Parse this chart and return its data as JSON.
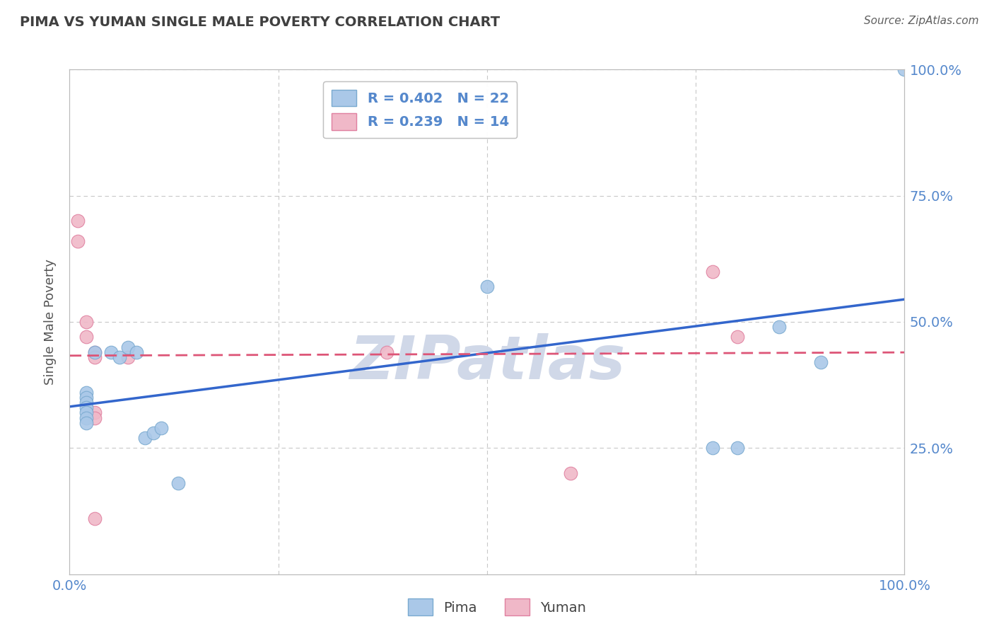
{
  "title": "PIMA VS YUMAN SINGLE MALE POVERTY CORRELATION CHART",
  "source": "Source: ZipAtlas.com",
  "ylabel": "Single Male Poverty",
  "xlim": [
    0,
    100
  ],
  "ylim": [
    0,
    100
  ],
  "xtick_positions": [
    0,
    25,
    50,
    75,
    100
  ],
  "xtick_labels": [
    "0.0%",
    "",
    "",
    "",
    "100.0%"
  ],
  "ytick_positions": [
    0,
    25,
    50,
    75,
    100
  ],
  "ytick_labels_right": [
    "",
    "25.0%",
    "50.0%",
    "75.0%",
    "100.0%"
  ],
  "pima_x": [
    2,
    2,
    2,
    2,
    2,
    2,
    2,
    3,
    5,
    6,
    7,
    8,
    9,
    10,
    11,
    13,
    50,
    77,
    80,
    85,
    90,
    100
  ],
  "pima_y": [
    36,
    35,
    34,
    33,
    32,
    31,
    30,
    44,
    44,
    43,
    45,
    44,
    27,
    28,
    29,
    18,
    57,
    25,
    25,
    49,
    42,
    100
  ],
  "yuman_x": [
    1,
    1,
    2,
    2,
    3,
    3,
    3,
    3,
    3,
    7,
    38,
    60,
    77,
    80
  ],
  "yuman_y": [
    70,
    66,
    50,
    47,
    44,
    43,
    32,
    31,
    11,
    43,
    44,
    20,
    60,
    47
  ],
  "pima_color": "#aac8e8",
  "yuman_color": "#f0b8c8",
  "pima_edge": "#7aaad0",
  "yuman_edge": "#e080a0",
  "pima_R": 0.402,
  "pima_N": 22,
  "yuman_R": 0.239,
  "yuman_N": 14,
  "blue_line_color": "#3366cc",
  "pink_line_color": "#dd5577",
  "watermark_text": "ZIPatlas",
  "watermark_color": "#d0d8e8",
  "background_color": "#ffffff",
  "grid_color": "#c8c8c8",
  "title_color": "#404040",
  "source_color": "#606060",
  "tick_color": "#5588cc",
  "ylabel_color": "#555555"
}
